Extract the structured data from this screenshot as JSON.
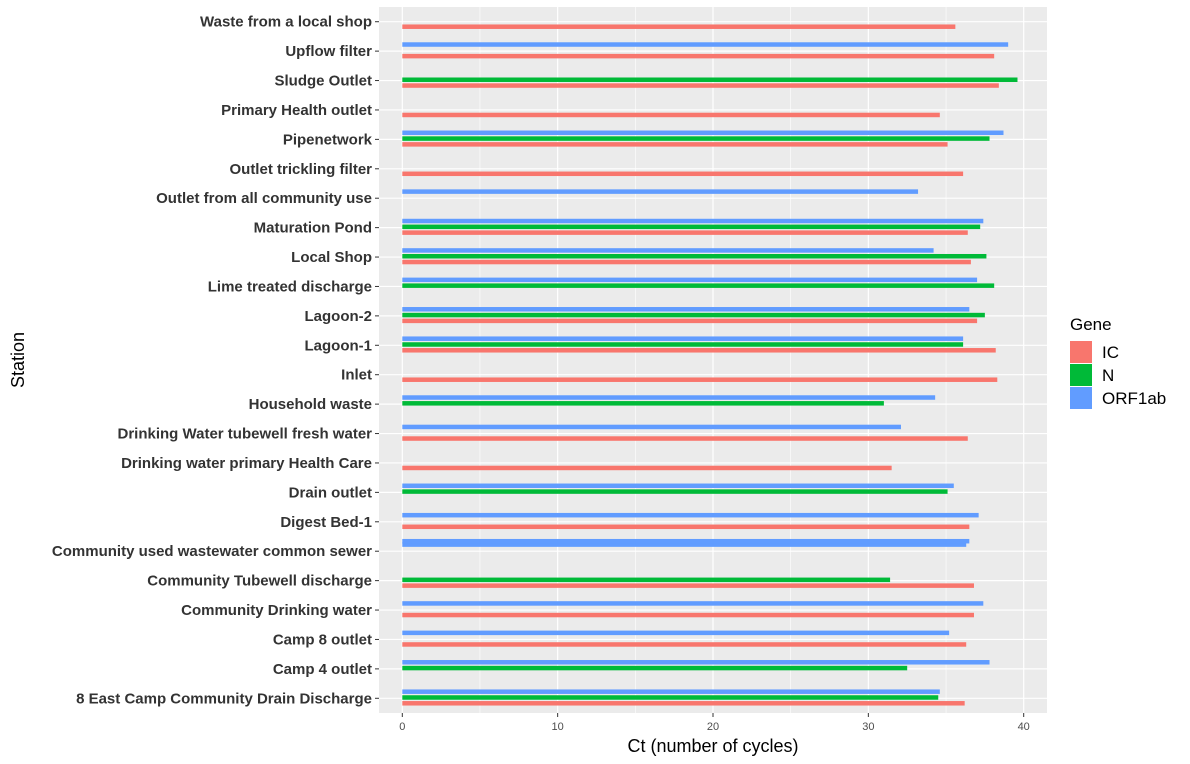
{
  "chart_data": {
    "type": "bar",
    "orientation": "horizontal",
    "xlabel": "Ct (number of cycles)",
    "ylabel": "Station",
    "xlim": [
      -1.5,
      41.5
    ],
    "xticks": [
      0,
      10,
      20,
      30,
      40
    ],
    "grid": true,
    "legend_position": "right",
    "legend_title": "Gene",
    "categories": [
      "8 East Camp Community Drain Discharge",
      "Camp 4 outlet",
      "Camp 8 outlet",
      "Community Drinking water ",
      "Community Tubewell discharge",
      "Community used wastewater common sewer",
      "Digest Bed-1",
      "Drain outlet",
      "Drinking water primary Health Care",
      "Drinking Water tubewell fresh water",
      "Household waste",
      "Inlet",
      "Lagoon-1",
      "Lagoon-2",
      "Lime treated discharge",
      "Local Shop",
      "Maturation Pond",
      "Outlet from all community use",
      "Outlet trickling filter",
      "Pipenetwork",
      "Primary Health outlet",
      "Sludge Outlet",
      "Upflow filter",
      "Waste from a local shop"
    ],
    "series": [
      {
        "name": "IC",
        "color": "#F8766D",
        "values": [
          [
            36.2
          ],
          [],
          [
            36.3
          ],
          [
            36.8
          ],
          [
            36.8
          ],
          [],
          [
            36.5
          ],
          [],
          [
            31.5
          ],
          [
            36.4
          ],
          [],
          [
            38.3
          ],
          [
            38.2
          ],
          [
            37.0
          ],
          [],
          [
            36.6
          ],
          [
            36.4
          ],
          [],
          [
            36.1
          ],
          [
            35.1
          ],
          [
            34.6
          ],
          [
            38.4
          ],
          [
            38.1
          ],
          [
            35.6
          ]
        ]
      },
      {
        "name": "N",
        "color": "#00BA38",
        "values": [
          [
            34.5
          ],
          [
            32.5
          ],
          [],
          [],
          [
            31.4
          ],
          [],
          [],
          [
            35.1
          ],
          [],
          [],
          [
            31.0
          ],
          [],
          [
            36.1
          ],
          [
            37.5
          ],
          [
            38.1
          ],
          [
            37.6
          ],
          [
            37.2
          ],
          [],
          [],
          [
            37.8
          ],
          [],
          [
            39.6
          ],
          [],
          []
        ]
      },
      {
        "name": "ORF1ab",
        "color": "#619CFF",
        "values": [
          [
            34.6
          ],
          [
            37.8
          ],
          [
            35.2
          ],
          [
            37.4
          ],
          [],
          [
            36.3,
            36.5
          ],
          [
            37.1
          ],
          [
            35.5
          ],
          [],
          [
            32.1
          ],
          [
            34.3
          ],
          [],
          [
            36.1
          ],
          [
            36.5
          ],
          [
            37.0
          ],
          [
            34.2
          ],
          [
            37.4
          ],
          [
            33.2
          ],
          [],
          [
            38.7
          ],
          [],
          [],
          [
            39.0
          ],
          []
        ]
      }
    ]
  }
}
